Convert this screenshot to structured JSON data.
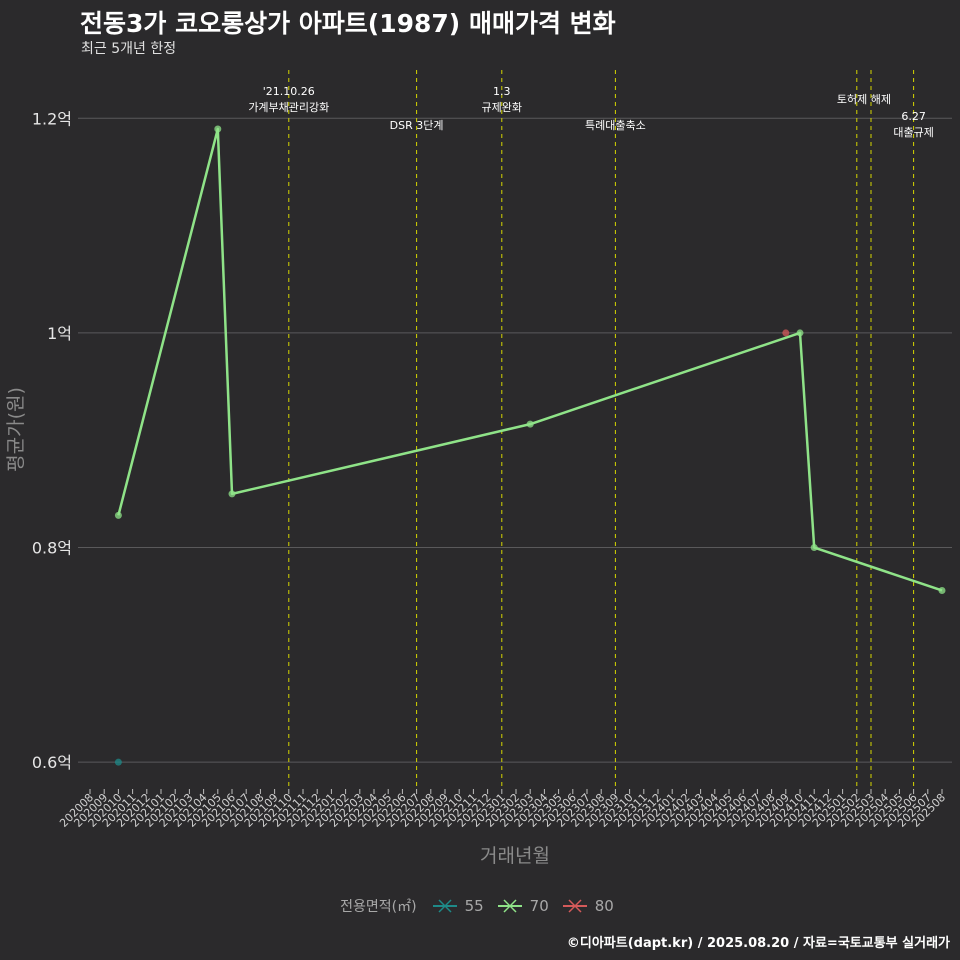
{
  "header": {
    "title": "전동3가 코오롱상가 아파트(1987) 매매가격 변화",
    "subtitle": "최근 5개년 한정"
  },
  "caption": "©디아파트(dapt.kr) / 2025.08.20 / 자료=국토교통부 실거래가",
  "colors": {
    "background": "#2b2a2c",
    "grid": "#5a595b",
    "event_line": "#d6d600",
    "s55": "#1e8a88",
    "s70": "#8fe388",
    "s80": "#d45a5a"
  },
  "chart_data": {
    "type": "line",
    "xlabel": "거래년월",
    "ylabel": "평균가(원)",
    "x_categories": [
      "202008",
      "202009",
      "202010",
      "202011",
      "202012",
      "202101",
      "202102",
      "202103",
      "202104",
      "202105",
      "202106",
      "202107",
      "202108",
      "202109",
      "202110",
      "202111",
      "202112",
      "202201",
      "202202",
      "202203",
      "202204",
      "202205",
      "202206",
      "202207",
      "202208",
      "202209",
      "202210",
      "202211",
      "202212",
      "202301",
      "202302",
      "202303",
      "202304",
      "202305",
      "202306",
      "202307",
      "202308",
      "202309",
      "202310",
      "202311",
      "202312",
      "202401",
      "202402",
      "202403",
      "202404",
      "202405",
      "202406",
      "202407",
      "202408",
      "202409",
      "202410",
      "202411",
      "202412",
      "202501",
      "202502",
      "202503",
      "202504",
      "202505",
      "202506",
      "202507",
      "202508"
    ],
    "y_ticks": [
      {
        "value": 0.6,
        "label": "0.6억"
      },
      {
        "value": 0.8,
        "label": "0.8억"
      },
      {
        "value": 1.0,
        "label": "1억"
      },
      {
        "value": 1.2,
        "label": "1.2억"
      }
    ],
    "ylim": [
      0.575,
      1.245
    ],
    "y_unit": "억원",
    "legend_title": "전용면적(㎡)",
    "legend_position": "bottom",
    "grid": "horizontal",
    "series": [
      {
        "name": "55",
        "color": "#1e8a88",
        "points": [
          {
            "x": "202010",
            "y": 0.6
          }
        ]
      },
      {
        "name": "70",
        "color": "#8fe388",
        "points": [
          {
            "x": "202010",
            "y": 0.83
          },
          {
            "x": "202105",
            "y": 1.19
          },
          {
            "x": "202106",
            "y": 0.85
          },
          {
            "x": "202303",
            "y": 0.915
          },
          {
            "x": "202410",
            "y": 1.0
          },
          {
            "x": "202411",
            "y": 0.8
          },
          {
            "x": "202508",
            "y": 0.76
          }
        ]
      },
      {
        "name": "80",
        "color": "#d45a5a",
        "points": [
          {
            "x": "202409",
            "y": 1.0
          }
        ]
      }
    ],
    "annotations": [
      {
        "x": "202110",
        "lines": [
          "'21.10.26",
          "가계부채관리강화"
        ],
        "row": 1
      },
      {
        "x": "202207",
        "lines": [
          "DSR 3단계"
        ],
        "row": 2
      },
      {
        "x": "202301",
        "lines": [
          "1.3",
          "규제완화"
        ],
        "row": 1
      },
      {
        "x": "202309",
        "lines": [
          "특례대출축소"
        ],
        "row": 2
      },
      {
        "x": "202502",
        "lines": [],
        "row": 0
      },
      {
        "x": "202503",
        "lines": [
          "토허제 해제"
        ],
        "row": 1,
        "label_at": "202502.5"
      },
      {
        "x": "202506",
        "lines": [
          "6.27",
          "대출규제"
        ],
        "row": 2
      }
    ]
  }
}
